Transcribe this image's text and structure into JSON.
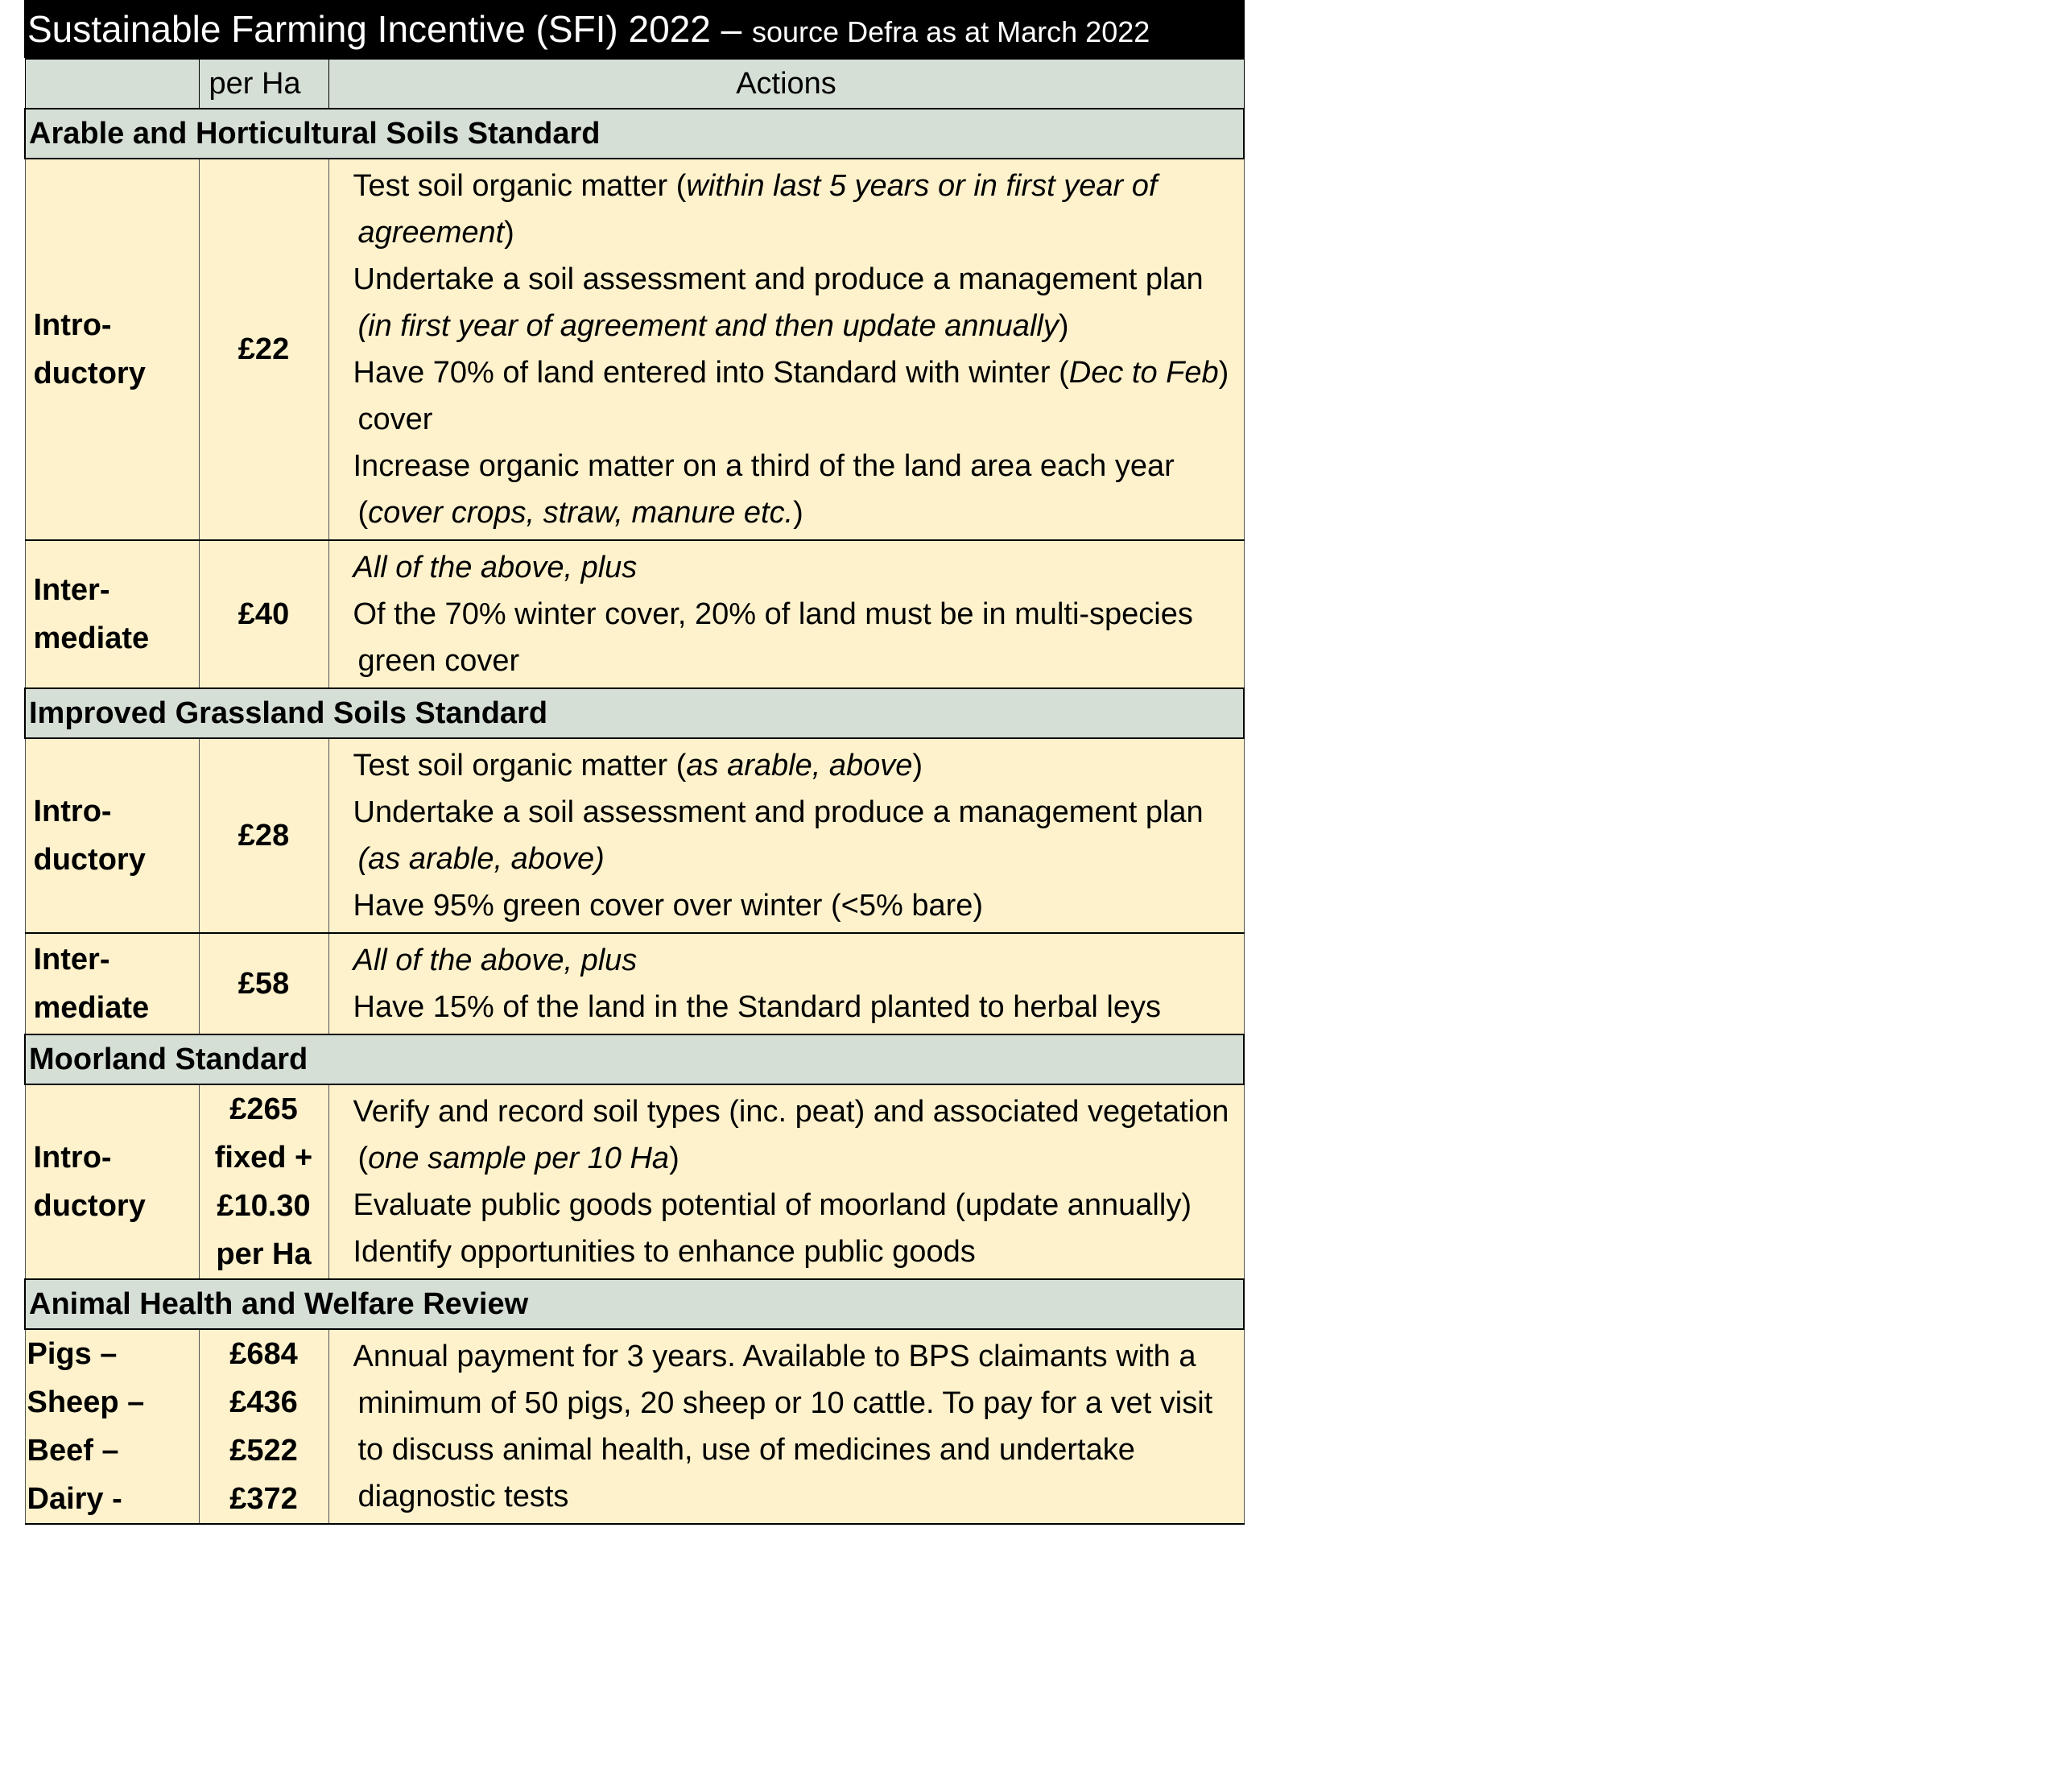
{
  "title": "Sustainable Farming Incentive (SFI) 2022 –",
  "subtitle": "source Defra as at March 2022",
  "header": {
    "rate": "per Ha",
    "actions": "Actions"
  },
  "sections": [
    {
      "name": "Arable and Horticultural Soils Standard",
      "rows": [
        {
          "level": [
            "Intro-",
            "ductory"
          ],
          "rate": [
            "£22"
          ],
          "actions": [
            [
              {
                "t": "Test soil organic matter ("
              },
              {
                "t": "within last 5 years or in first year of agreement",
                "i": true
              },
              {
                "t": ")"
              }
            ],
            [
              {
                "t": "Undertake a soil assessment and produce a management plan "
              },
              {
                "t": "(in first year of agreement and then update annually",
                "i": true
              },
              {
                "t": ")"
              }
            ],
            [
              {
                "t": "Have 70% of land entered into Standard with winter ("
              },
              {
                "t": "Dec to Feb",
                "i": true
              },
              {
                "t": ") cover"
              }
            ],
            [
              {
                "t": "Increase organic matter on a third of the land area each year ("
              },
              {
                "t": "cover crops, straw, manure etc.",
                "i": true
              },
              {
                "t": ")"
              }
            ]
          ]
        },
        {
          "level": [
            "Inter-",
            "mediate"
          ],
          "rate": [
            "£40"
          ],
          "actions": [
            [
              {
                "t": "All of the above, plus",
                "i": true
              }
            ],
            [
              {
                "t": "Of the 70% winter cover, 20% of land must be in multi-species green cover"
              }
            ]
          ]
        }
      ]
    },
    {
      "name": "Improved Grassland Soils Standard",
      "rows": [
        {
          "level": [
            "Intro-",
            "ductory"
          ],
          "rate": [
            "£28"
          ],
          "actions": [
            [
              {
                "t": "Test soil organic matter ("
              },
              {
                "t": "as arable, above",
                "i": true
              },
              {
                "t": ")"
              }
            ],
            [
              {
                "t": "Undertake a soil assessment and produce a management plan "
              },
              {
                "t": "(as arable, above)",
                "i": true
              }
            ],
            [
              {
                "t": "Have 95% green cover over winter (<5% bare)"
              }
            ]
          ]
        },
        {
          "level": [
            "Inter-",
            "mediate"
          ],
          "rate": [
            "£58"
          ],
          "actions": [
            [
              {
                "t": "All of the above, plus",
                "i": true
              }
            ],
            [
              {
                "t": "Have 15% of the land in the Standard planted to herbal leys"
              }
            ]
          ]
        }
      ]
    },
    {
      "name": "Moorland Standard",
      "rows": [
        {
          "level": [
            "Intro-",
            "ductory"
          ],
          "rate": [
            "£265",
            "fixed +",
            "£10.30",
            "per Ha"
          ],
          "actions": [
            [
              {
                "t": "Verify and record soil types (inc. peat) and associated vegetation ("
              },
              {
                "t": "one sample per 10 Ha",
                "i": true
              },
              {
                "t": ")"
              }
            ],
            [
              {
                "t": "Evaluate public goods potential of moorland (update annually)"
              }
            ],
            [
              {
                "t": "Identify opportunities to enhance public goods"
              }
            ]
          ]
        }
      ]
    },
    {
      "name": "Animal Health and Welfare Review",
      "rows": [
        {
          "level": [
            "Pigs –",
            "Sheep –",
            "Beef –",
            "Dairy -"
          ],
          "rate": [
            "£684",
            "£436",
            "£522",
            "£372"
          ],
          "actions": [
            [
              {
                "t": "Annual payment for 3 years.  Available to BPS claimants with a minimum of 50 pigs, 20 sheep or 10 cattle.  To pay for a vet visit to discuss animal health, use of medicines and undertake diagnostic tests"
              }
            ]
          ]
        }
      ]
    }
  ]
}
